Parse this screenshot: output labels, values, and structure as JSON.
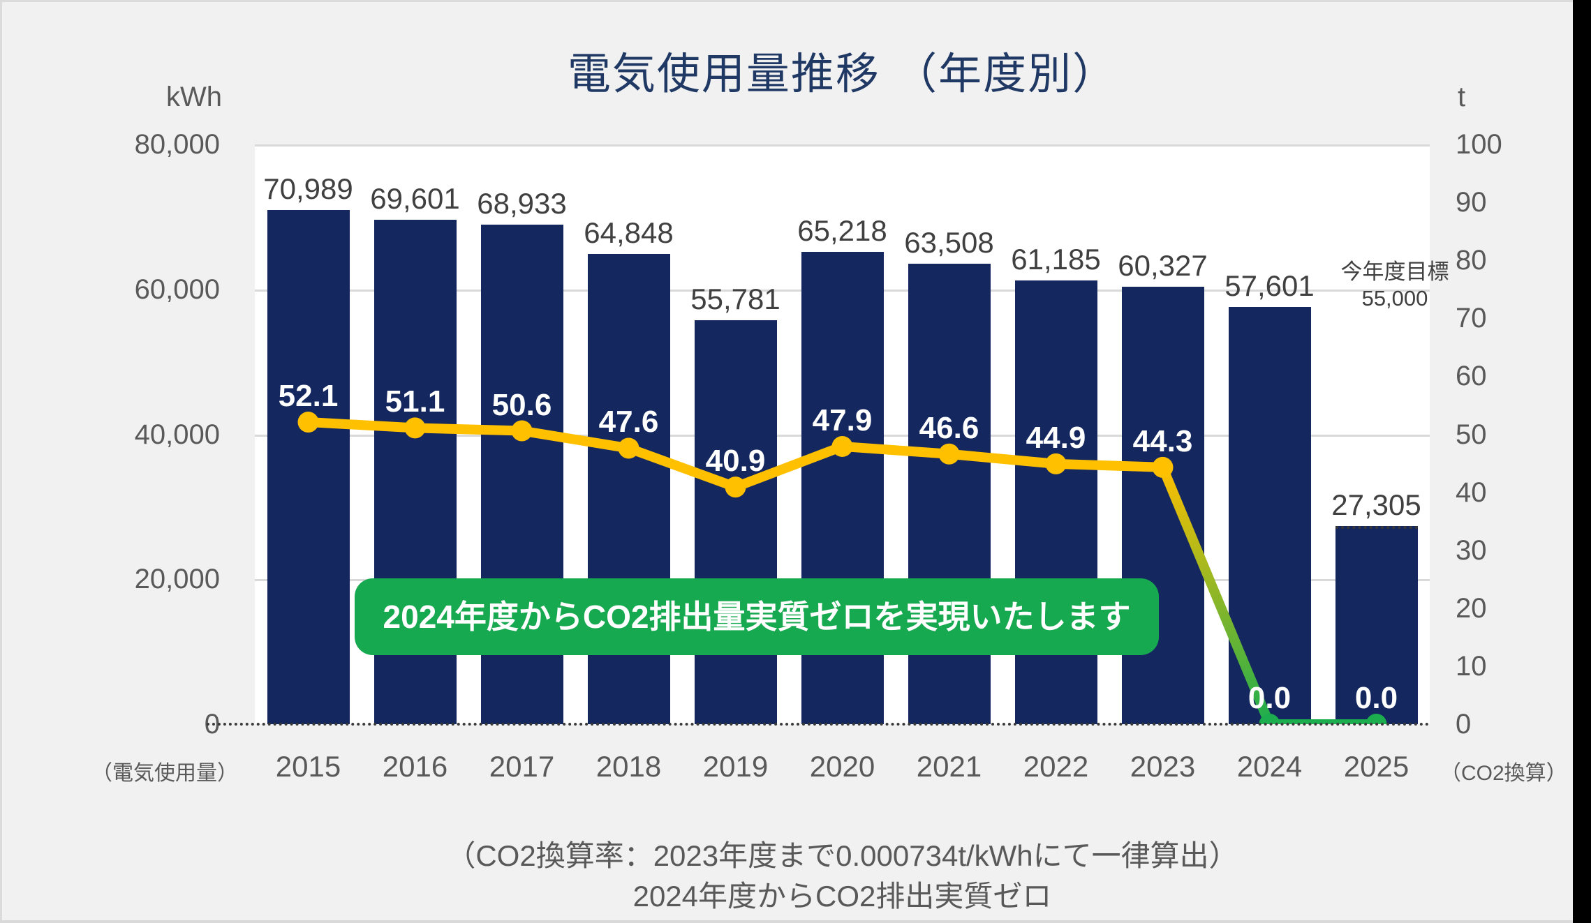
{
  "title": "電気使用量推移 （年度別）",
  "axis_units": {
    "left": "kWh",
    "right": "t"
  },
  "axis_captions": {
    "left": "（電気使用量）",
    "right": "（CO2換算）"
  },
  "goal_annotation": {
    "line1": "今年度目標",
    "line2": "55,000"
  },
  "banner": {
    "text": "2024年度からCO2排出量実質ゼロを実現いたします"
  },
  "footer": {
    "line1": "（CO2換算率：2023年度まで0.000734t/kWhにて一律算出）",
    "line2": "2024年度からCO2排出実質ゼロ"
  },
  "colors": {
    "bar": "#14275E",
    "bar_label": "#404040",
    "line_yellow": "#FFC000",
    "line_green": "#1CAD4E",
    "banner_green": "#17A950",
    "title": "#1F3864",
    "axis_text": "#595959",
    "grid": "#D9D9D9",
    "plot_bg": "#FFFFFF",
    "page_bg": "#F1F1F1"
  },
  "chart_data": {
    "type": "combo",
    "categories": [
      "2015",
      "2016",
      "2017",
      "2018",
      "2019",
      "2020",
      "2021",
      "2022",
      "2023",
      "2024",
      "2025"
    ],
    "series": [
      {
        "name": "電気使用量 (kWh)",
        "type": "bar",
        "axis": "left",
        "values": [
          70989,
          69601,
          68933,
          64848,
          55781,
          65218,
          63508,
          61185,
          60327,
          57601,
          27305
        ]
      },
      {
        "name": "CO2換算 (t)",
        "type": "line",
        "axis": "right",
        "values": [
          52.1,
          51.1,
          50.6,
          47.6,
          40.9,
          47.9,
          46.6,
          44.9,
          44.3,
          0.0,
          0.0
        ]
      }
    ],
    "left_axis": {
      "label": "kWh",
      "range": [
        0,
        80000
      ],
      "tick_step": 20000
    },
    "right_axis": {
      "label": "t",
      "range": [
        0,
        100
      ],
      "tick_step": 10
    },
    "grid": true,
    "legend": "none",
    "annotations": {
      "target_value": "55,000",
      "forecast_category": "2025",
      "co2_zero_from_category": "2024"
    }
  }
}
